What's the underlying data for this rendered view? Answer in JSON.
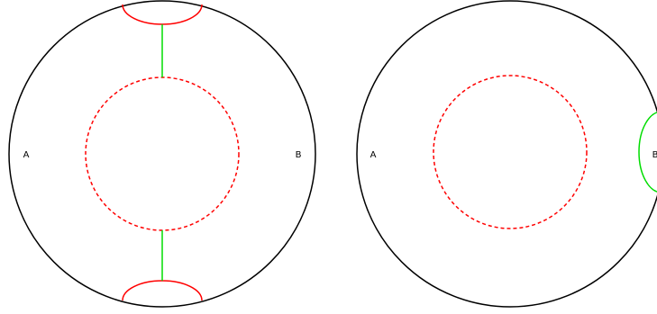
{
  "colors": {
    "background": "#ffffff",
    "outline": "#000000",
    "cut_curve": "#ff0000",
    "connector": "#00dd00"
  },
  "panels": [
    {
      "label_a": "A",
      "label_b": "B"
    },
    {
      "label_a": "A",
      "label_b": "B"
    }
  ]
}
